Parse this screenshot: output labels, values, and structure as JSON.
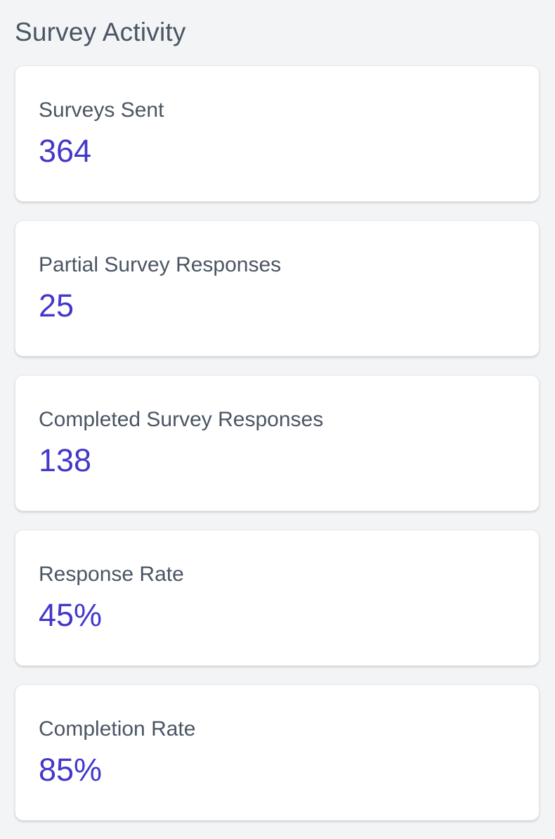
{
  "section": {
    "title": "Survey Activity"
  },
  "stats": [
    {
      "label": "Surveys Sent",
      "value": "364"
    },
    {
      "label": "Partial Survey Responses",
      "value": "25"
    },
    {
      "label": "Completed Survey Responses",
      "value": "138"
    },
    {
      "label": "Response Rate",
      "value": "45%"
    },
    {
      "label": "Completion Rate",
      "value": "85%"
    }
  ],
  "colors": {
    "background": "#f3f4f6",
    "card": "#ffffff",
    "label_text": "#4b5563",
    "value_accent": "#4338ca"
  }
}
